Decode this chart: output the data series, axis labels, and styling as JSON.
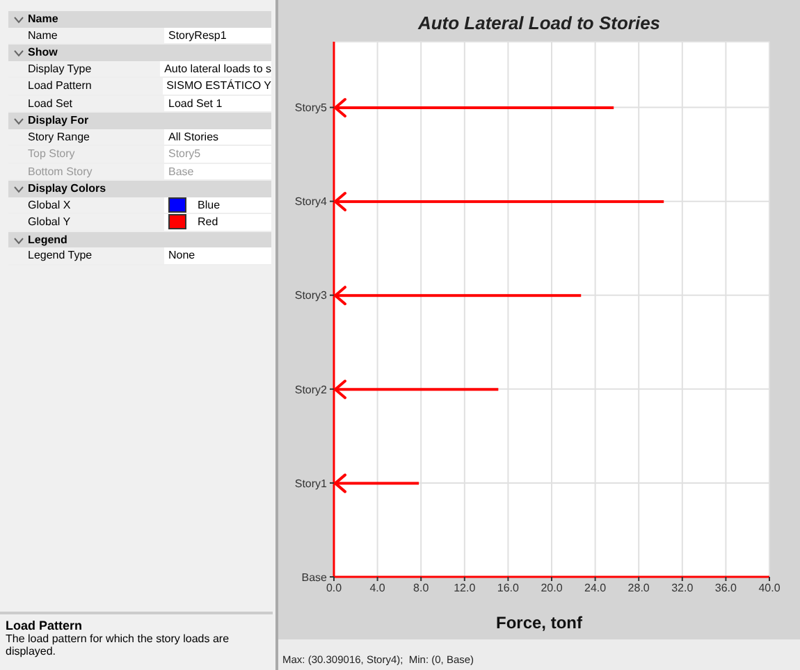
{
  "chart_data": [
    {
      "type": "other",
      "annotations": [
        "Name",
        "Name",
        "StoryResp1",
        "Show",
        "Display Type",
        "Auto lateral loads to s",
        "Load Pattern",
        "SISMO ESTÁTICO Y",
        "Load Set",
        "Load Set 1",
        "Display For",
        "Story Range",
        "All Stories",
        "Top Story",
        "Story5",
        "Bottom Story",
        "Base",
        "Display Colors",
        "Global X",
        "Blue",
        "Global Y",
        "Red",
        "Legend",
        "Legend Type",
        "None",
        "Load Pattern",
        "The load pattern for which the story loads are displayed."
      ]
    },
    {
      "type": "bar",
      "orientation": "horizontal",
      "title": "Auto Lateral Load to Stories",
      "xlabel": "Force, tonf",
      "categories": [
        "Story5",
        "Story4",
        "Story3",
        "Story2",
        "Story1",
        "Base"
      ],
      "values": [
        25.7,
        30.3,
        22.7,
        15.1,
        7.8,
        0
      ],
      "color": "#ff0000",
      "xlim": [
        0,
        40
      ],
      "xticks": [
        {
          "value": 0,
          "label": "0.0"
        },
        {
          "value": 4,
          "label": "4.0"
        },
        {
          "value": 8,
          "label": "8.0"
        },
        {
          "value": 12,
          "label": "12.0"
        },
        {
          "value": 16,
          "label": "16.0"
        },
        {
          "value": 20,
          "label": "20.0"
        },
        {
          "value": 24,
          "label": "24.0"
        },
        {
          "value": 28,
          "label": "28.0"
        },
        {
          "value": 32,
          "label": "32.0"
        },
        {
          "value": 36,
          "label": "36.0"
        },
        {
          "value": 40,
          "label": "40.0"
        }
      ],
      "grid": true,
      "annotations": [
        "Max: (30.309016, Story4);  Min: (0, Base)"
      ]
    }
  ]
}
